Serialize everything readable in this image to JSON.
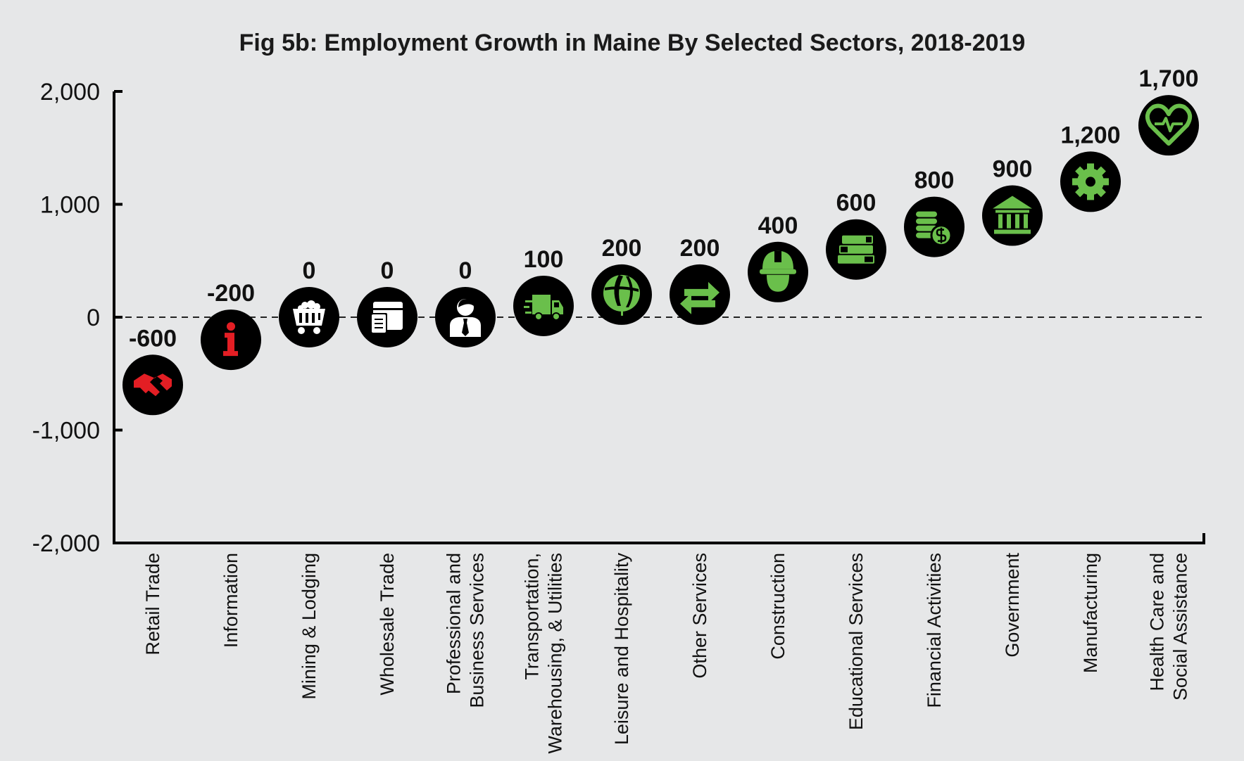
{
  "chart_data": {
    "type": "scatter",
    "title": "Fig 5b: Employment Growth in Maine By Selected Sectors, 2018-2019",
    "xlabel": "",
    "ylabel": "",
    "ylim": [
      -2000,
      2000
    ],
    "yticks": [
      2000,
      1000,
      0,
      -1000,
      -2000
    ],
    "ytick_labels": [
      "2,000",
      "1,000",
      "0",
      "-1,000",
      "-2,000"
    ],
    "zero_line": "dashed",
    "grid": false,
    "categories": [
      [
        "Retail Trade"
      ],
      [
        "Information"
      ],
      [
        "Mining & Lodging"
      ],
      [
        "Wholesale Trade"
      ],
      [
        "Professional and",
        "Business Services"
      ],
      [
        "Transportation,",
        "Warehousing, & Utilities"
      ],
      [
        "Leisure and Hospitality"
      ],
      [
        "Other Services"
      ],
      [
        "Construction"
      ],
      [
        "Educational Services"
      ],
      [
        "Financial Activities"
      ],
      [
        "Government"
      ],
      [
        "Manufacturing"
      ],
      [
        "Health Care and",
        "Social Assistance"
      ]
    ],
    "values": [
      -600,
      -200,
      0,
      0,
      0,
      100,
      200,
      200,
      400,
      600,
      800,
      900,
      1200,
      1700
    ],
    "value_labels": [
      "-600",
      "-200",
      "0",
      "0",
      "0",
      "100",
      "200",
      "200",
      "400",
      "600",
      "800",
      "900",
      "1,200",
      "1,700"
    ],
    "icons": [
      "handshake-icon",
      "info-icon",
      "mine-cart-icon",
      "box-clipboard-icon",
      "businessman-icon",
      "delivery-truck-icon",
      "beach-ball-icon",
      "exchange-arrows-icon",
      "hard-hat-icon",
      "books-icon",
      "coins-icon",
      "bank-icon",
      "gear-icon",
      "heart-pulse-icon"
    ],
    "icon_colors": [
      "#e31e24",
      "#e31e24",
      "#ffffff",
      "#ffffff",
      "#ffffff",
      "#6abf4b",
      "#6abf4b",
      "#6abf4b",
      "#6abf4b",
      "#6abf4b",
      "#6abf4b",
      "#6abf4b",
      "#6abf4b",
      "#6abf4b"
    ],
    "marker_color": "#000000",
    "colors": {
      "negative": "#e31e24",
      "zero": "#ffffff",
      "positive": "#6abf4b"
    }
  }
}
